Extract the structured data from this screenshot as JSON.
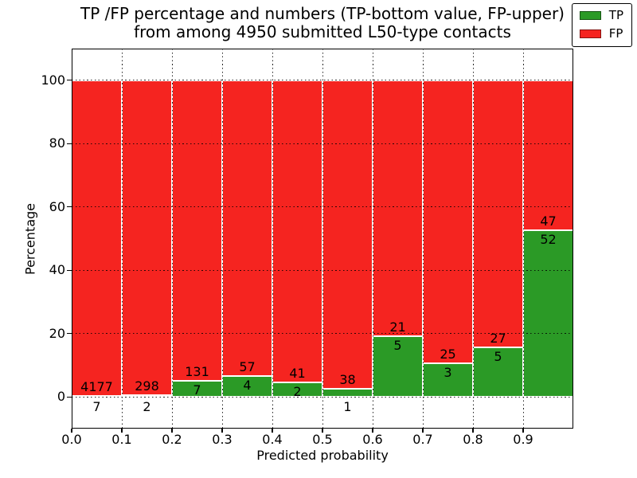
{
  "title": {
    "line1": "TP /FP percentage and numbers (TP-bottom value, FP-upper)",
    "line2": "from among 4950 submitted L50-type contacts"
  },
  "axes": {
    "xlabel": "Predicted probability",
    "ylabel": "Percentage"
  },
  "legend": {
    "position": "upper right",
    "items": [
      {
        "label": "TP",
        "color": "#2b9a26"
      },
      {
        "label": "FP",
        "color": "#f52420"
      }
    ]
  },
  "colors": {
    "tp_green": "#2b9a26",
    "fp_red": "#f52420",
    "grid": "#000000",
    "background": "#ffffff"
  },
  "chart_data": {
    "type": "bar",
    "stacked": true,
    "normalized": "percent of bin (TP+FP = 100%)",
    "title": "TP /FP percentage and numbers (TP-bottom value, FP-upper) from among 4950 submitted L50-type contacts",
    "xlabel": "Predicted probability",
    "ylabel": "Percentage",
    "total_submitted": 4950,
    "xlim": [
      0.0,
      1.0
    ],
    "ylim": [
      -10,
      110
    ],
    "grid": "dotted",
    "legend_position": "upper right",
    "x_ticks": [
      "0.0",
      "0.1",
      "0.2",
      "0.3",
      "0.4",
      "0.5",
      "0.6",
      "0.7",
      "0.8",
      "0.9"
    ],
    "y_ticks": [
      0,
      20,
      40,
      60,
      80,
      100
    ],
    "bin_width": 0.1,
    "series_names": [
      "TP",
      "FP"
    ],
    "bins": [
      {
        "x0": 0.0,
        "x1": 0.1,
        "tp": 7,
        "fp": 4177
      },
      {
        "x0": 0.1,
        "x1": 0.2,
        "tp": 2,
        "fp": 298
      },
      {
        "x0": 0.2,
        "x1": 0.3,
        "tp": 7,
        "fp": 131
      },
      {
        "x0": 0.3,
        "x1": 0.4,
        "tp": 4,
        "fp": 57
      },
      {
        "x0": 0.4,
        "x1": 0.5,
        "tp": 2,
        "fp": 41
      },
      {
        "x0": 0.5,
        "x1": 0.6,
        "tp": 1,
        "fp": 38
      },
      {
        "x0": 0.6,
        "x1": 0.7,
        "tp": 5,
        "fp": 21
      },
      {
        "x0": 0.7,
        "x1": 0.8,
        "tp": 3,
        "fp": 25
      },
      {
        "x0": 0.8,
        "x1": 0.9,
        "tp": 5,
        "fp": 27
      },
      {
        "x0": 0.9,
        "x1": 1.0,
        "tp": 52,
        "fp": 47
      }
    ]
  }
}
